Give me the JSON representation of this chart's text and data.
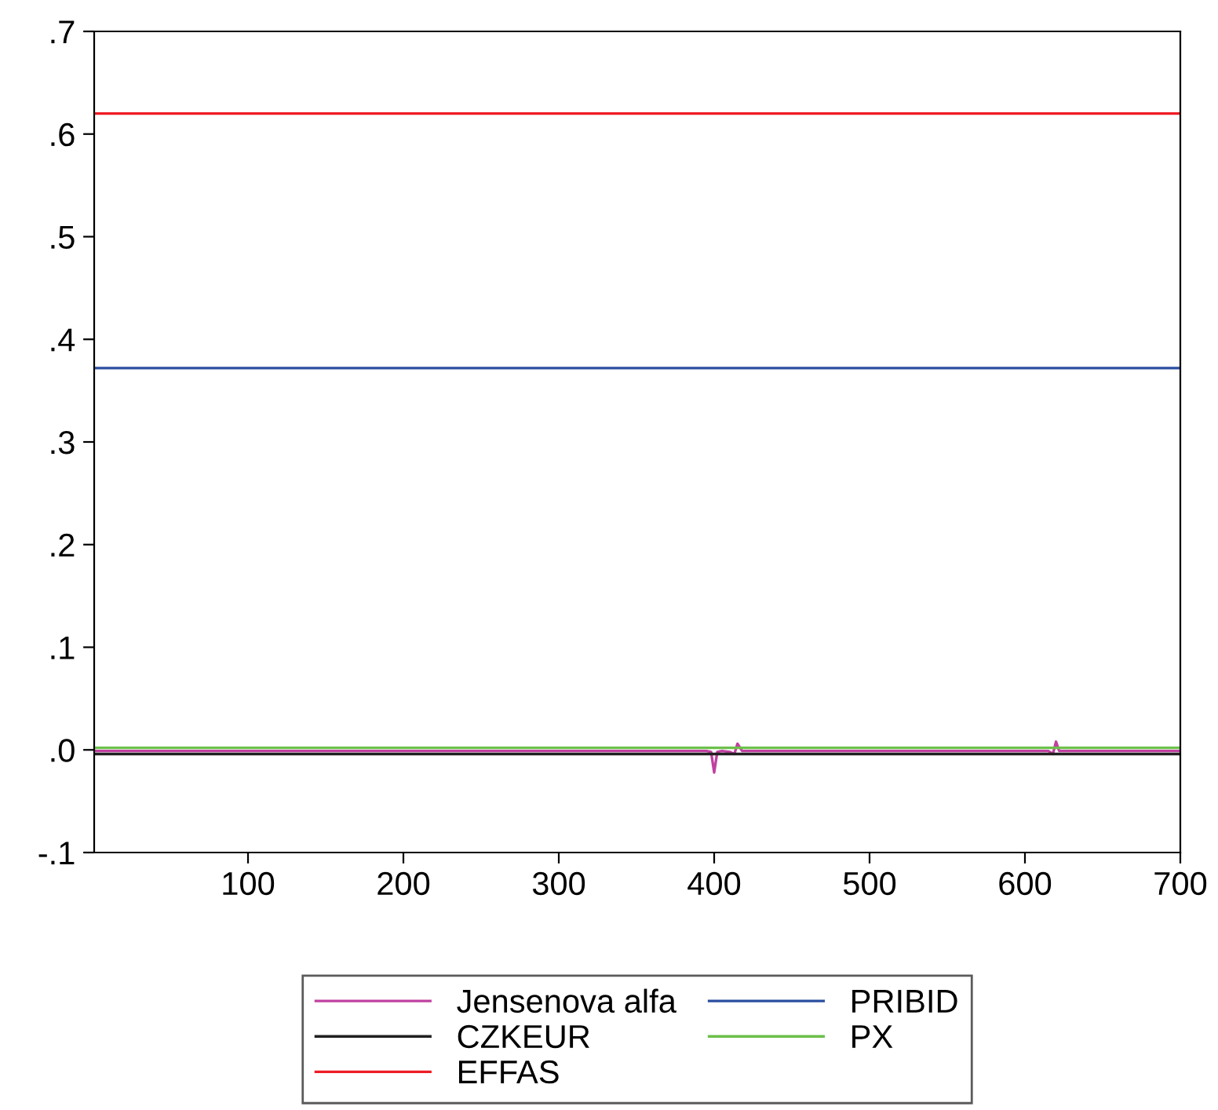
{
  "chart_data": {
    "type": "line",
    "series": [
      {
        "name": "Jensenova alfa",
        "color": "#c040a0",
        "x": [
          1,
          100,
          200,
          300,
          395,
          398,
          400,
          402,
          405,
          410,
          413,
          415,
          418,
          500,
          600,
          615,
          618,
          620,
          622,
          625,
          700
        ],
        "values": [
          -0.001,
          -0.001,
          -0.001,
          -0.001,
          -0.001,
          -0.002,
          -0.022,
          -0.002,
          -0.001,
          -0.002,
          -0.004,
          0.006,
          -0.001,
          -0.001,
          -0.001,
          -0.001,
          -0.004,
          0.008,
          -0.001,
          -0.001,
          -0.001
        ]
      },
      {
        "name": "CZKEUR",
        "color": "#202020",
        "x": [
          1,
          700
        ],
        "values": [
          -0.004,
          -0.004
        ]
      },
      {
        "name": "EFFAS",
        "color": "#ee1c24",
        "x": [
          1,
          700
        ],
        "values": [
          0.62,
          0.62
        ]
      },
      {
        "name": "PRIBID",
        "color": "#2b4ea0",
        "x": [
          1,
          700
        ],
        "values": [
          0.372,
          0.372
        ]
      },
      {
        "name": "PX",
        "color": "#6cc04a",
        "x": [
          1,
          700
        ],
        "values": [
          0.002,
          0.002
        ]
      }
    ],
    "xlim": [
      1,
      700
    ],
    "xticks": [
      100,
      200,
      300,
      400,
      500,
      600,
      700
    ],
    "ylim": [
      -0.1,
      0.7
    ],
    "yticks": [
      {
        "value": -0.1,
        "label": "-.1"
      },
      {
        "value": 0.0,
        "label": ".0"
      },
      {
        "value": 0.1,
        "label": ".1"
      },
      {
        "value": 0.2,
        "label": ".2"
      },
      {
        "value": 0.3,
        "label": ".3"
      },
      {
        "value": 0.4,
        "label": ".4"
      },
      {
        "value": 0.5,
        "label": ".5"
      },
      {
        "value": 0.6,
        "label": ".6"
      },
      {
        "value": 0.7,
        "label": ".7"
      }
    ],
    "grid": false,
    "legend": "bottom",
    "marker": "none",
    "line_style": "solid"
  }
}
